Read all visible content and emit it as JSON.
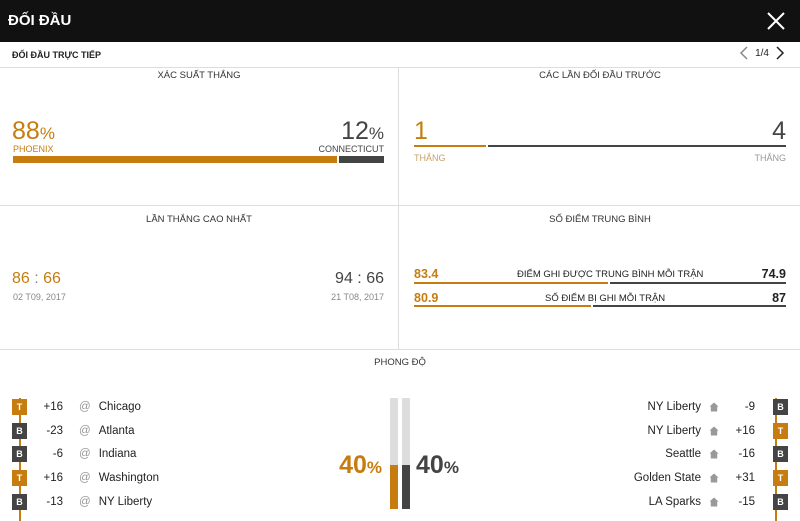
{
  "header": {
    "title": "ĐỐI ĐẦU"
  },
  "subheader": {
    "title": "ĐỐI ĐẦU TRỰC TIẾP",
    "pager": "1/4"
  },
  "win_prob": {
    "title": "XÁC SUẤT THẮNG",
    "left": {
      "value": "88",
      "unit": "%",
      "team": "PHOENIX",
      "fraction": 0.88
    },
    "right": {
      "value": "12",
      "unit": "%",
      "team": "CONNECTICUT",
      "fraction": 0.12
    }
  },
  "prev_meetings": {
    "title": "CÁC LẦN ĐỐI ĐẦU TRƯỚC",
    "left": {
      "value": "1",
      "label": "THẮNG"
    },
    "right": {
      "value": "4",
      "label": "THẮNG"
    },
    "left_fraction": 0.2
  },
  "biggest_win": {
    "title": "LẦN THẮNG CAO NHẤT",
    "left": {
      "score_a": "86",
      "sep": ":",
      "score_b": "66",
      "date": "02 T09, 2017"
    },
    "right": {
      "score_a": "94",
      "sep": ":",
      "score_b": "66",
      "date": "21 T08, 2017"
    }
  },
  "avg_points": {
    "title": "SỐ ĐIỂM TRUNG BÌNH",
    "rows": [
      {
        "label": "ĐIỂM GHI ĐƯỢC TRUNG BÌNH MỖI TRẬN",
        "left": "83.4",
        "right": "74.9"
      },
      {
        "label": "SỐ ĐIỂM BỊ GHI MỖI TRẬN",
        "left": "80.9",
        "right": "87"
      }
    ]
  },
  "form": {
    "title": "PHONG ĐỘ",
    "left_pct": {
      "value": "40",
      "unit": "%",
      "fraction": 0.4
    },
    "right_pct": {
      "value": "40",
      "unit": "%",
      "fraction": 0.4
    },
    "left_games": [
      {
        "result": "T",
        "diff": "+16",
        "at": "@",
        "opponent": "Chicago"
      },
      {
        "result": "B",
        "diff": "-23",
        "at": "@",
        "opponent": "Atlanta"
      },
      {
        "result": "B",
        "diff": "-6",
        "at": "@",
        "opponent": "Indiana"
      },
      {
        "result": "T",
        "diff": "+16",
        "at": "@",
        "opponent": "Washington"
      },
      {
        "result": "B",
        "diff": "-13",
        "at": "@",
        "opponent": "NY Liberty"
      }
    ],
    "right_games": [
      {
        "result": "B",
        "diff": "-9",
        "opponent": "NY Liberty"
      },
      {
        "result": "T",
        "diff": "+16",
        "opponent": "NY Liberty"
      },
      {
        "result": "B",
        "diff": "-16",
        "opponent": "Seattle"
      },
      {
        "result": "T",
        "diff": "+31",
        "opponent": "Golden State"
      },
      {
        "result": "B",
        "diff": "-15",
        "opponent": "LA Sparks"
      }
    ]
  },
  "colors": {
    "accent": "#c67c0e",
    "dark": "#444444",
    "header": "#111111"
  },
  "icons": {
    "close": "close-icon",
    "prev": "chevron-left-icon",
    "next": "chevron-right-icon",
    "home": "home-icon"
  }
}
